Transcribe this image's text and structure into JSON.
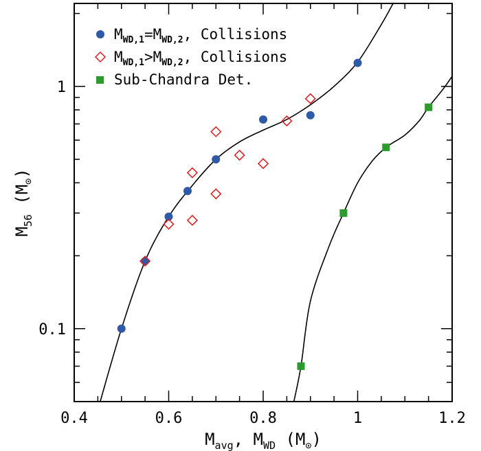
{
  "chart_data": {
    "type": "scatter",
    "x_axis": {
      "range": [
        0.4,
        1.2
      ],
      "ticks": [
        0.4,
        0.6,
        0.8,
        1.0,
        1.2
      ],
      "tick_labels": [
        "0.4",
        "0.6",
        "0.8",
        "1",
        "1.2"
      ],
      "label_main": "M",
      "label_sub1": "avg",
      "label_sep": ", M",
      "label_sub2": "WD",
      "label_unit": " (M",
      "label_close": ")"
    },
    "y_axis": {
      "scale": "log",
      "range": [
        0.05,
        2.2
      ],
      "ticks": [
        0.1,
        1
      ],
      "tick_labels": [
        "0.1",
        "1"
      ],
      "label_main": "M",
      "label_sub": "56",
      "label_unit": "  (M",
      "label_close": ")"
    },
    "legend_position": "top-left",
    "grid": false,
    "series": [
      {
        "legend": {
          "a": "M",
          "b": "WD,1",
          "c": "=M",
          "d": "WD,2",
          "e": ", Collisions"
        },
        "marker": "filled-circle",
        "color": "#2f5aa8",
        "points": [
          [
            0.5,
            0.1
          ],
          [
            0.55,
            0.19
          ],
          [
            0.6,
            0.29
          ],
          [
            0.64,
            0.37
          ],
          [
            0.7,
            0.5
          ],
          [
            0.8,
            0.73
          ],
          [
            0.9,
            0.76
          ],
          [
            1.0,
            1.25
          ]
        ]
      },
      {
        "legend": {
          "a": "M",
          "b": "WD,1",
          "c": ">M",
          "d": "WD,2",
          "e": ", Collisions"
        },
        "marker": "open-diamond",
        "color": "#e41a1c",
        "points": [
          [
            0.55,
            0.19
          ],
          [
            0.6,
            0.27
          ],
          [
            0.65,
            0.28
          ],
          [
            0.65,
            0.44
          ],
          [
            0.7,
            0.36
          ],
          [
            0.7,
            0.65
          ],
          [
            0.75,
            0.52
          ],
          [
            0.8,
            0.48
          ],
          [
            0.85,
            0.72
          ],
          [
            0.9,
            0.89
          ]
        ]
      },
      {
        "legend": {
          "a": "Sub-Chandra Det.",
          "b": "",
          "c": "",
          "d": "",
          "e": ""
        },
        "marker": "filled-square",
        "color": "#2e9a2e",
        "points": [
          [
            0.88,
            0.07
          ],
          [
            0.97,
            0.3
          ],
          [
            1.06,
            0.56
          ],
          [
            1.15,
            0.82
          ]
        ]
      }
    ],
    "fit_curves": [
      {
        "color": "#000000",
        "points": [
          [
            0.455,
            0.05
          ],
          [
            0.5,
            0.1
          ],
          [
            0.55,
            0.19
          ],
          [
            0.6,
            0.29
          ],
          [
            0.65,
            0.39
          ],
          [
            0.7,
            0.5
          ],
          [
            0.75,
            0.59
          ],
          [
            0.8,
            0.66
          ],
          [
            0.85,
            0.73
          ],
          [
            0.9,
            0.84
          ],
          [
            0.95,
            1.0
          ],
          [
            1.0,
            1.26
          ],
          [
            1.05,
            1.8
          ],
          [
            1.075,
            2.2
          ]
        ]
      },
      {
        "color": "#000000",
        "points": [
          [
            0.865,
            0.05
          ],
          [
            0.88,
            0.07
          ],
          [
            0.9,
            0.13
          ],
          [
            0.94,
            0.22
          ],
          [
            0.97,
            0.3
          ],
          [
            1.0,
            0.4
          ],
          [
            1.03,
            0.49
          ],
          [
            1.06,
            0.56
          ],
          [
            1.1,
            0.63
          ],
          [
            1.13,
            0.72
          ],
          [
            1.15,
            0.82
          ],
          [
            1.18,
            0.97
          ],
          [
            1.2,
            1.1
          ]
        ]
      }
    ]
  }
}
